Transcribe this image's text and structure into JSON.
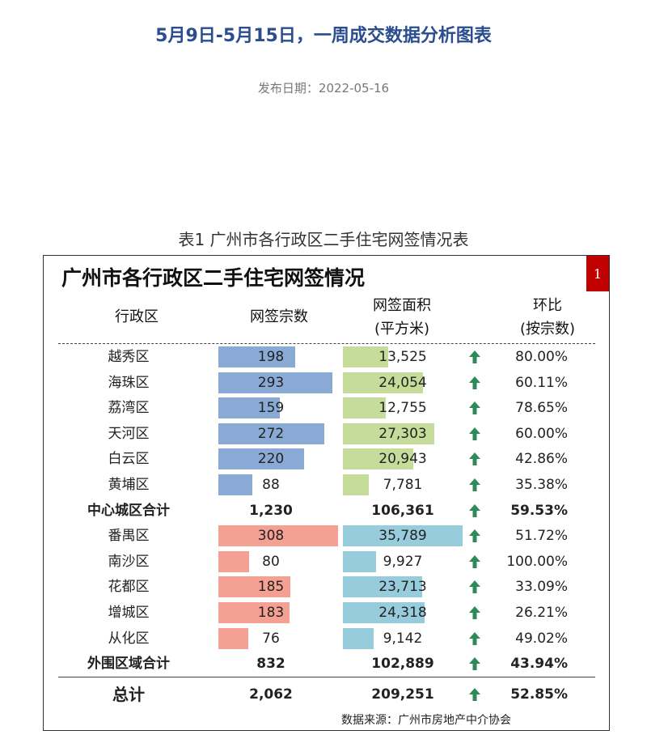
{
  "page_title": "5月9日-5月15日，一周成交数据分析图表",
  "publish_date": "发布日期：2022-05-16",
  "table_caption": "表1 广州市各行政区二手住宅网签情况表",
  "chart_data": {
    "type": "table",
    "title": "广州市各行政区二手住宅网签情况",
    "page_badge": "1",
    "headers": {
      "district": "行政区",
      "count": "网签宗数",
      "area_line1": "网签面积",
      "area_line2": "(平方米)",
      "ratio_line1": "环比",
      "ratio_line2": "(按宗数)"
    },
    "count_max": 308,
    "area_max": 35789,
    "colors": {
      "central_count": "#8aaad6",
      "central_area": "#c6dc9a",
      "outer_count": "#f4a093",
      "outer_area": "#96ccdc",
      "arrow": "#2e8b57"
    },
    "rows": [
      {
        "district": "越秀区",
        "count": 198,
        "count_label": "198",
        "area": 13525,
        "area_label": "13,525",
        "ratio": "80.00%",
        "trend": "up",
        "group": "central",
        "kind": "data"
      },
      {
        "district": "海珠区",
        "count": 293,
        "count_label": "293",
        "area": 24054,
        "area_label": "24,054",
        "ratio": "60.11%",
        "trend": "up",
        "group": "central",
        "kind": "data"
      },
      {
        "district": "荔湾区",
        "count": 159,
        "count_label": "159",
        "area": 12755,
        "area_label": "12,755",
        "ratio": "78.65%",
        "trend": "up",
        "group": "central",
        "kind": "data"
      },
      {
        "district": "天河区",
        "count": 272,
        "count_label": "272",
        "area": 27303,
        "area_label": "27,303",
        "ratio": "60.00%",
        "trend": "up",
        "group": "central",
        "kind": "data"
      },
      {
        "district": "白云区",
        "count": 220,
        "count_label": "220",
        "area": 20943,
        "area_label": "20,943",
        "ratio": "42.86%",
        "trend": "up",
        "group": "central",
        "kind": "data"
      },
      {
        "district": "黄埔区",
        "count": 88,
        "count_label": "88",
        "area": 7781,
        "area_label": "7,781",
        "ratio": "35.38%",
        "trend": "up",
        "group": "central",
        "kind": "data"
      },
      {
        "district": "中心城区合计",
        "count": 1230,
        "count_label": "1,230",
        "area": 106361,
        "area_label": "106,361",
        "ratio": "59.53%",
        "trend": "up",
        "group": "central",
        "kind": "subtotal"
      },
      {
        "district": "番禺区",
        "count": 308,
        "count_label": "308",
        "area": 35789,
        "area_label": "35,789",
        "ratio": "51.72%",
        "trend": "up",
        "group": "outer",
        "kind": "data"
      },
      {
        "district": "南沙区",
        "count": 80,
        "count_label": "80",
        "area": 9927,
        "area_label": "9,927",
        "ratio": "100.00%",
        "trend": "up",
        "group": "outer",
        "kind": "data"
      },
      {
        "district": "花都区",
        "count": 185,
        "count_label": "185",
        "area": 23713,
        "area_label": "23,713",
        "ratio": "33.09%",
        "trend": "up",
        "group": "outer",
        "kind": "data"
      },
      {
        "district": "增城区",
        "count": 183,
        "count_label": "183",
        "area": 24318,
        "area_label": "24,318",
        "ratio": "26.21%",
        "trend": "up",
        "group": "outer",
        "kind": "data"
      },
      {
        "district": "从化区",
        "count": 76,
        "count_label": "76",
        "area": 9142,
        "area_label": "9,142",
        "ratio": "49.02%",
        "trend": "up",
        "group": "outer",
        "kind": "data"
      },
      {
        "district": "外围区域合计",
        "count": 832,
        "count_label": "832",
        "area": 102889,
        "area_label": "102,889",
        "ratio": "43.94%",
        "trend": "up",
        "group": "outer",
        "kind": "subtotal"
      },
      {
        "district": "总计",
        "count": 2062,
        "count_label": "2,062",
        "area": 209251,
        "area_label": "209,251",
        "ratio": "52.85%",
        "trend": "up",
        "group": "all",
        "kind": "total"
      }
    ],
    "source": "数据来源：广州市房地产中介协会"
  }
}
